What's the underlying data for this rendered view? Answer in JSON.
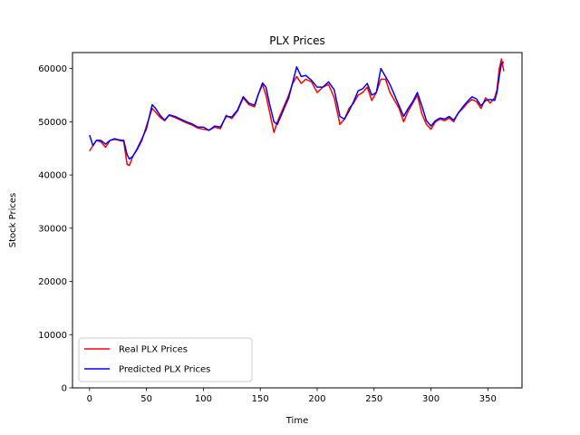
{
  "chart_data": {
    "type": "line",
    "title": "PLX Prices",
    "xlabel": "Time",
    "ylabel": "Stock Prices",
    "xlim": [
      -15,
      380
    ],
    "ylim": [
      0,
      63000
    ],
    "xticks": [
      0,
      50,
      100,
      150,
      200,
      250,
      300,
      350
    ],
    "yticks": [
      0,
      10000,
      20000,
      30000,
      40000,
      50000,
      60000
    ],
    "grid": false,
    "legend_position": "lower-left",
    "series": [
      {
        "name": "Real PLX Prices",
        "color": "#ff0000",
        "x": [
          0,
          3,
          6,
          10,
          14,
          18,
          22,
          26,
          30,
          33,
          35,
          38,
          42,
          46,
          50,
          55,
          58,
          62,
          66,
          70,
          75,
          80,
          85,
          90,
          95,
          100,
          105,
          110,
          115,
          120,
          125,
          130,
          135,
          140,
          145,
          148,
          152,
          155,
          158,
          162,
          165,
          170,
          175,
          178,
          182,
          186,
          190,
          195,
          200,
          205,
          210,
          215,
          220,
          224,
          228,
          232,
          236,
          240,
          244,
          248,
          252,
          256,
          260,
          264,
          268,
          272,
          276,
          280,
          284,
          288,
          292,
          296,
          300,
          304,
          308,
          312,
          316,
          320,
          324,
          328,
          332,
          336,
          340,
          344,
          348,
          352,
          356,
          358,
          360,
          362,
          364
        ],
        "y": [
          44500,
          45500,
          46500,
          46200,
          45200,
          46500,
          46700,
          46500,
          46300,
          42000,
          41800,
          43500,
          44800,
          46500,
          49200,
          52500,
          51800,
          50800,
          50200,
          51200,
          50800,
          50300,
          49800,
          49400,
          48800,
          48600,
          48400,
          49000,
          48700,
          51200,
          50600,
          52000,
          54500,
          53200,
          52800,
          55000,
          57000,
          55000,
          52000,
          48000,
          50000,
          52500,
          55000,
          57000,
          58500,
          57200,
          58000,
          57500,
          55500,
          56500,
          57000,
          54500,
          49500,
          50500,
          52500,
          53500,
          55000,
          55500,
          56500,
          54000,
          55500,
          58000,
          58000,
          55500,
          54000,
          52500,
          50000,
          52000,
          53500,
          55000,
          51500,
          49500,
          48600,
          50000,
          50500,
          50200,
          50700,
          50000,
          51700,
          52500,
          53500,
          54200,
          53800,
          52500,
          54500,
          53500,
          54500,
          56000,
          60000,
          61800,
          59500
        ]
      },
      {
        "name": "Predicted PLX Prices",
        "color": "#0000ff",
        "x": [
          0,
          3,
          6,
          10,
          14,
          18,
          22,
          26,
          30,
          33,
          35,
          38,
          42,
          46,
          50,
          55,
          58,
          62,
          66,
          70,
          75,
          80,
          85,
          90,
          95,
          100,
          105,
          110,
          115,
          120,
          125,
          130,
          135,
          140,
          145,
          148,
          152,
          155,
          158,
          162,
          165,
          170,
          175,
          178,
          182,
          186,
          190,
          195,
          200,
          205,
          210,
          215,
          220,
          224,
          228,
          232,
          236,
          240,
          244,
          248,
          252,
          256,
          260,
          264,
          268,
          272,
          276,
          280,
          284,
          288,
          292,
          296,
          300,
          304,
          308,
          312,
          316,
          320,
          324,
          328,
          332,
          336,
          340,
          344,
          348,
          352,
          356,
          358,
          360,
          362,
          364
        ],
        "y": [
          47500,
          45500,
          46500,
          46500,
          45800,
          46500,
          46800,
          46600,
          46500,
          43800,
          43000,
          43500,
          45000,
          46800,
          48700,
          53200,
          52500,
          51200,
          50300,
          51300,
          51000,
          50500,
          50000,
          49600,
          49000,
          49000,
          48400,
          49200,
          49000,
          51000,
          50900,
          52200,
          54700,
          53500,
          53100,
          55000,
          57300,
          56500,
          53500,
          50000,
          49500,
          52000,
          54500,
          57000,
          60300,
          58500,
          58700,
          57800,
          56500,
          56500,
          57500,
          56000,
          51000,
          50500,
          52000,
          53800,
          55800,
          56200,
          57200,
          55000,
          55500,
          60000,
          58500,
          57000,
          55000,
          53000,
          51000,
          52500,
          53800,
          55500,
          53000,
          50200,
          49200,
          50200,
          50700,
          50500,
          51000,
          50300,
          51600,
          52800,
          53800,
          54700,
          54300,
          53000,
          54000,
          54200,
          54000,
          55500,
          58500,
          61000,
          61200
        ]
      }
    ]
  }
}
